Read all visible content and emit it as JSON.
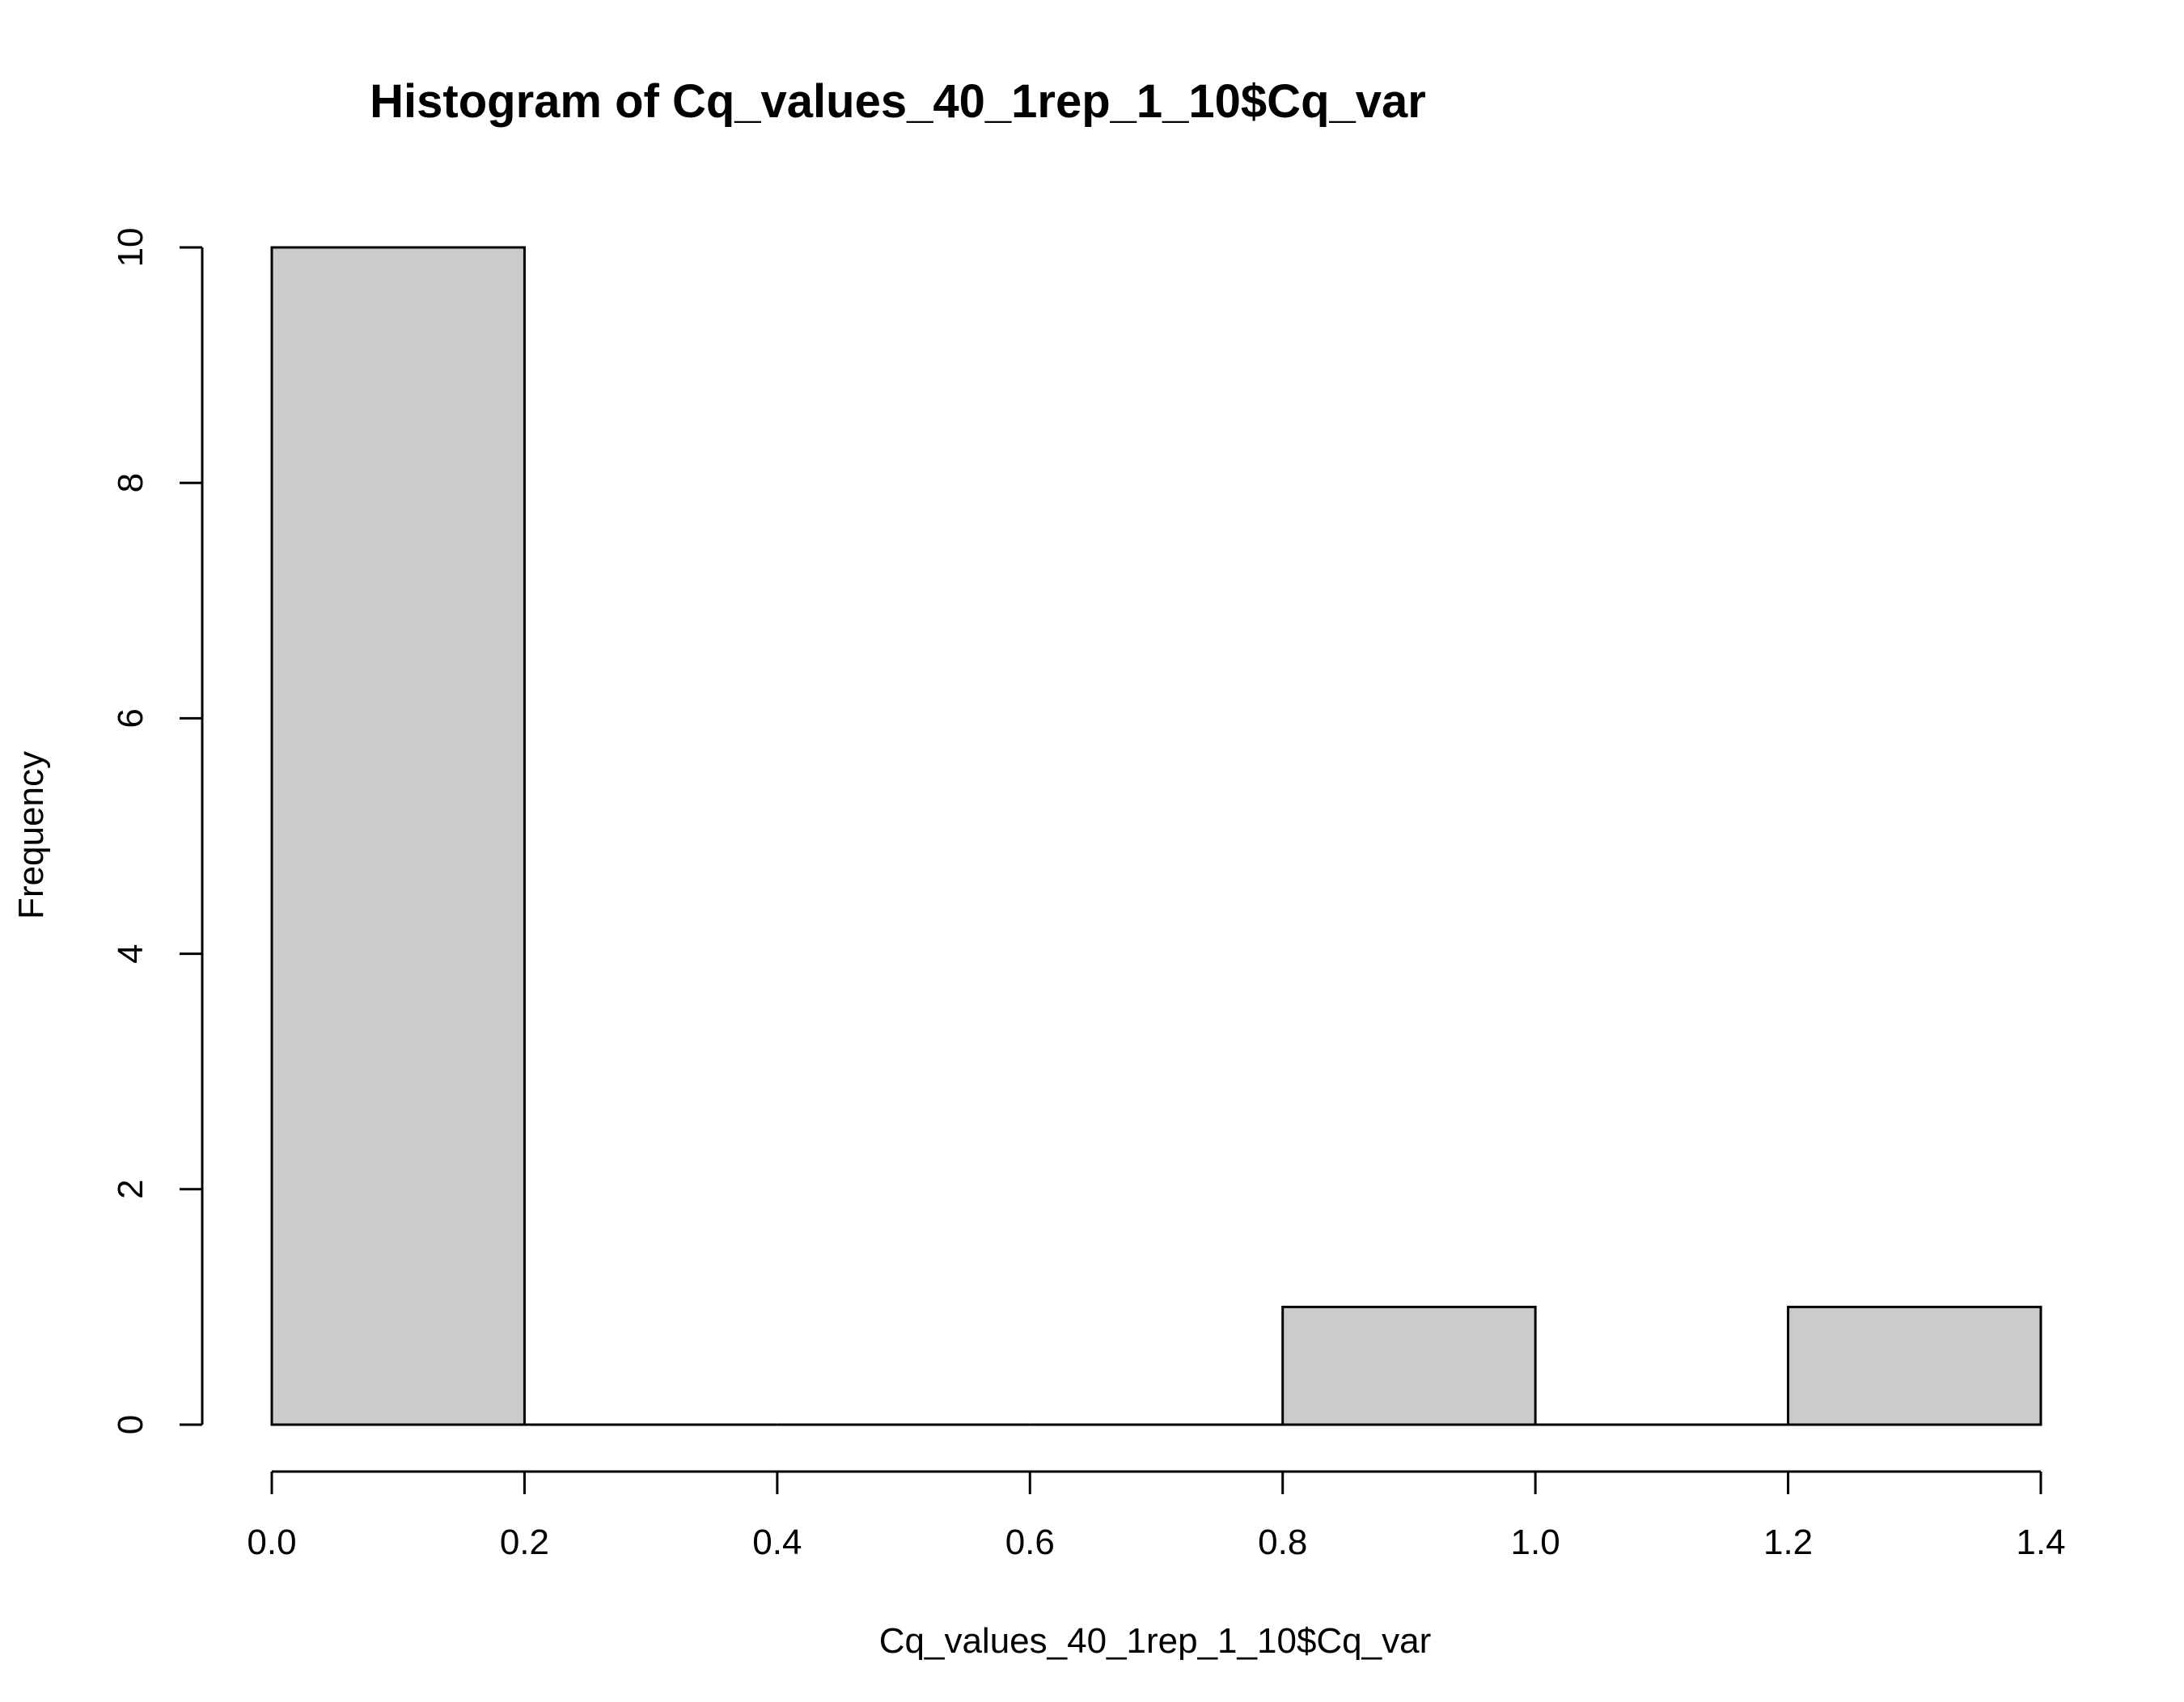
{
  "chart_data": {
    "type": "bar",
    "title": "Histogram of Cq_values_40_1rep_1_10$Cq_var",
    "xlabel": "Cq_values_40_1rep_1_10$Cq_var",
    "ylabel": "Frequency",
    "bins": [
      {
        "start": 0.0,
        "end": 0.2,
        "count": 10
      },
      {
        "start": 0.2,
        "end": 0.4,
        "count": 0
      },
      {
        "start": 0.4,
        "end": 0.6,
        "count": 0
      },
      {
        "start": 0.6,
        "end": 0.8,
        "count": 0
      },
      {
        "start": 0.8,
        "end": 1.0,
        "count": 1
      },
      {
        "start": 1.0,
        "end": 1.2,
        "count": 0
      },
      {
        "start": 1.2,
        "end": 1.4,
        "count": 1
      }
    ],
    "xlim": [
      0.0,
      1.4
    ],
    "ylim": [
      0,
      10
    ],
    "x_ticks": [
      "0.0",
      "0.2",
      "0.4",
      "0.6",
      "0.8",
      "1.0",
      "1.2",
      "1.4"
    ],
    "y_ticks": [
      "0",
      "2",
      "4",
      "6",
      "8",
      "10"
    ],
    "bar_color": "#cbcbcb",
    "grid": false,
    "legend": "none"
  }
}
